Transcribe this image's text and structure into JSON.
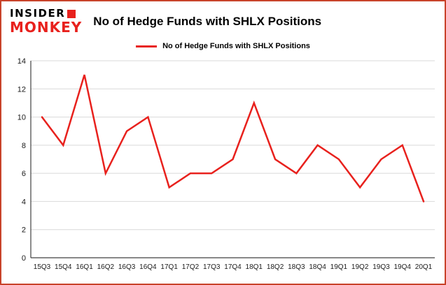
{
  "logo": {
    "line1": "INSIDER",
    "line2": "MONKEY"
  },
  "header": {
    "title": "No of Hedge Funds with SHLX Positions"
  },
  "legend": {
    "label": "No of Hedge Funds with SHLX Positions"
  },
  "colors": {
    "line": "#e8211d",
    "frame_border": "#c8432a",
    "grid": "#d9d9d9",
    "axis": "#404040",
    "tick_text": "#1a1a1a"
  },
  "chart_data": {
    "type": "line",
    "title": "No of Hedge Funds with SHLX Positions",
    "categories": [
      "15Q3",
      "15Q4",
      "16Q1",
      "16Q2",
      "16Q3",
      "16Q4",
      "17Q1",
      "17Q2",
      "17Q3",
      "17Q4",
      "18Q1",
      "18Q2",
      "18Q3",
      "18Q4",
      "19Q1",
      "19Q2",
      "19Q3",
      "19Q4",
      "20Q1"
    ],
    "values": [
      10,
      8,
      13,
      6,
      9,
      10,
      5,
      6,
      6,
      7,
      11,
      7,
      6,
      8,
      7,
      5,
      7,
      8,
      4
    ],
    "xlabel": "",
    "ylabel": "",
    "ylim": [
      0,
      14
    ],
    "ytick_step": 2,
    "grid": true,
    "legend_position": "top",
    "series_color": "#e8211d"
  }
}
